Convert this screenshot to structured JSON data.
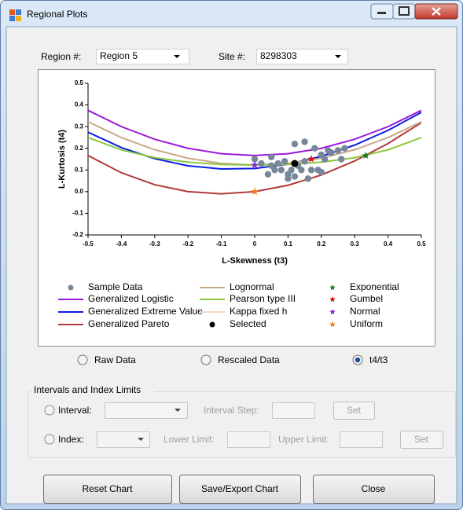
{
  "window": {
    "title": "Regional Plots"
  },
  "selectors": {
    "region_label": "Region #:",
    "region_value": "Region 5",
    "site_label": "Site #:",
    "site_value": "8298303"
  },
  "chart_data": {
    "type": "scatter",
    "xlabel": "L-Skewness (t3)",
    "ylabel": "L-Kurtosis (t4)",
    "xlim": [
      -0.5,
      0.5
    ],
    "ylim": [
      -0.2,
      0.5
    ],
    "xticks": [
      -0.5,
      -0.4,
      -0.3,
      -0.2,
      -0.1,
      0,
      0.1,
      0.2,
      0.3,
      0.4,
      0.5
    ],
    "yticks": [
      -0.2,
      -0.1,
      {
        "value": 0,
        "label": "0.0"
      },
      0.1,
      0.2,
      0.3,
      0.4,
      0.5
    ],
    "series": [
      {
        "name": "Sample Data",
        "marker": "circle",
        "color": "#76879a",
        "x": [
          0,
          0.02,
          0.04,
          0.06,
          0.05,
          0.07,
          0.09,
          0.08,
          0.1,
          0.11,
          0.12,
          0.13,
          0.14,
          0.12,
          0.15,
          0.15,
          0.16,
          0.17,
          0.18,
          0.2,
          0.19,
          0.21,
          0.22,
          0.23,
          0.25,
          0.27,
          0.26,
          0.2,
          0.1,
          0.05
        ],
        "values": [
          0.15,
          0.13,
          0.08,
          0.1,
          0.16,
          0.13,
          0.14,
          0.1,
          0.06,
          0.1,
          0.07,
          0.12,
          0.1,
          0.22,
          0.23,
          0.14,
          0.06,
          0.1,
          0.2,
          0.17,
          0.1,
          0.15,
          0.19,
          0.18,
          0.19,
          0.2,
          0.15,
          0.09,
          0.08,
          0.12
        ]
      },
      {
        "name": "Generalized Logistic",
        "marker": "line",
        "color": "#9a1ad8",
        "x": [
          -0.5,
          -0.4,
          -0.3,
          -0.2,
          -0.1,
          0,
          0.1,
          0.2,
          0.3,
          0.4,
          0.5
        ],
        "values": [
          0.375,
          0.3,
          0.2417,
          0.2,
          0.175,
          0.1667,
          0.175,
          0.2,
          0.2417,
          0.3,
          0.375
        ]
      },
      {
        "name": "Generalized Extreme Value",
        "marker": "line",
        "color": "#0b1fe0",
        "x": [
          -0.5,
          -0.4,
          -0.3,
          -0.2,
          -0.1,
          0,
          0.1,
          0.2,
          0.3,
          0.4,
          0.5
        ],
        "values": [
          0.2743,
          0.2034,
          0.1521,
          0.1193,
          0.1045,
          0.107,
          0.1265,
          0.1626,
          0.2148,
          0.2827,
          0.3658
        ]
      },
      {
        "name": "Generalized Pareto",
        "marker": "line",
        "color": "#b23a3a",
        "x": [
          -0.5,
          -0.4,
          -0.3,
          -0.2,
          -0.1,
          0,
          0.1,
          0.2,
          0.3,
          0.4,
          0.5
        ],
        "values": [
          0.1667,
          0.087,
          0.0319,
          0,
          -0.0102,
          0,
          0.0294,
          0.0769,
          0.1415,
          0.2222,
          0.3182
        ]
      },
      {
        "name": "Lognormal",
        "marker": "line",
        "color": "#c9a98a",
        "x": [
          -0.5,
          -0.4,
          -0.3,
          -0.2,
          -0.1,
          0,
          0.1,
          0.2,
          0.3,
          0.4,
          0.5
        ],
        "values": [
          0.3226,
          0.2495,
          0.1935,
          0.154,
          0.1306,
          0.1228,
          0.1306,
          0.154,
          0.1935,
          0.2495,
          0.3226
        ]
      },
      {
        "name": "Pearson type III",
        "marker": "line",
        "color": "#8cc63e",
        "x": [
          -0.5,
          -0.4,
          -0.3,
          -0.2,
          -0.1,
          0,
          0.1,
          0.2,
          0.3,
          0.4,
          0.5
        ],
        "values": [
          0.2494,
          0.1929,
          0.1568,
          0.1359,
          0.1255,
          0.1224,
          0.1255,
          0.1359,
          0.1568,
          0.1929,
          0.2494
        ]
      },
      {
        "name": "Kappa fixed h",
        "marker": "line",
        "color": "#f6d7c3",
        "x": [],
        "values": []
      },
      {
        "name": "Selected",
        "marker": "circle",
        "color": "#000000",
        "x": [
          0.12
        ],
        "values": [
          0.13
        ]
      },
      {
        "name": "Exponential",
        "marker": "star",
        "color": "#1a7a2a",
        "x": [
          0.3333
        ],
        "values": [
          0.1667
        ]
      },
      {
        "name": "Gumbel",
        "marker": "star",
        "color": "#e01010",
        "x": [
          0.1699
        ],
        "values": [
          0.1504
        ]
      },
      {
        "name": "Normal",
        "marker": "star",
        "color": "#8a2be2",
        "x": [
          0
        ],
        "values": [
          0.1226
        ]
      },
      {
        "name": "Uniform",
        "marker": "star",
        "color": "#f08020",
        "x": [
          0
        ],
        "values": [
          0
        ]
      }
    ]
  },
  "view_options": [
    {
      "label": "Raw Data",
      "checked": false
    },
    {
      "label": "Rescaled Data",
      "checked": false
    },
    {
      "label": "t4/t3",
      "checked": true
    }
  ],
  "limits": {
    "title": "Intervals and Index Limits",
    "interval_label": "Interval:",
    "interval_step_label": "Interval Step:",
    "set_1": "Set",
    "index_label": "Index:",
    "lower_limit_label": "Lower Limit:",
    "upper_limit_label": "Upper Limit:",
    "set_2": "Set"
  },
  "buttons": [
    "Reset Chart",
    "Save/Export Chart",
    "Close"
  ]
}
